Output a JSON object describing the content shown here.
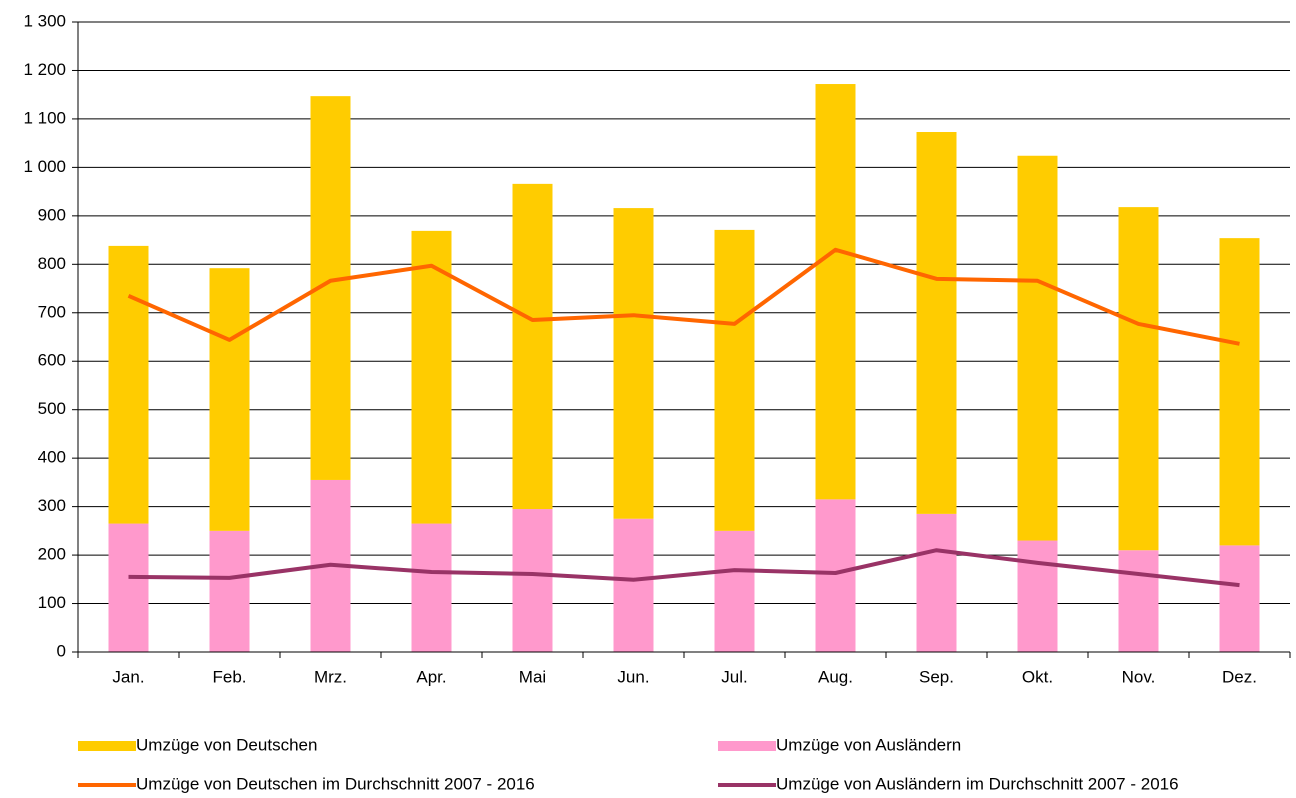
{
  "chart_data": {
    "type": "bar",
    "stacked": true,
    "categories": [
      "Jan.",
      "Feb.",
      "Mrz.",
      "Apr.",
      "Mai",
      "Jun.",
      "Jul.",
      "Aug.",
      "Sep.",
      "Okt.",
      "Nov.",
      "Dez."
    ],
    "series": [
      {
        "name": "Umzüge von Ausländern",
        "type": "bar",
        "color": "#ff99cc",
        "values": [
          265,
          250,
          355,
          265,
          295,
          275,
          250,
          315,
          285,
          230,
          210,
          220
        ]
      },
      {
        "name": "Umzüge von Deutschen",
        "type": "bar",
        "color": "#ffcc00",
        "values": [
          573,
          542,
          792,
          604,
          671,
          641,
          621,
          857,
          788,
          794,
          708,
          634
        ]
      },
      {
        "name": "Umzüge von Deutschen im Durchschnitt 2007 - 2016",
        "type": "line",
        "color": "#ff6600",
        "values": [
          735,
          644,
          766,
          797,
          685,
          695,
          677,
          830,
          770,
          766,
          677,
          636
        ]
      },
      {
        "name": "Umzüge von Ausländern im Durchschnitt 2007 - 2016",
        "type": "line",
        "color": "#993366",
        "values": [
          155,
          153,
          180,
          165,
          161,
          149,
          169,
          163,
          210,
          184,
          161,
          138
        ]
      }
    ],
    "ylim": [
      0,
      1300
    ],
    "yticks": [
      0,
      100,
      200,
      300,
      400,
      500,
      600,
      700,
      800,
      900,
      {
        "value": 1000,
        "label": "1 000"
      },
      {
        "value": 1100,
        "label": "1 100"
      },
      {
        "value": 1200,
        "label": "1 200"
      },
      {
        "value": 1300,
        "label": "1 300"
      }
    ],
    "grid": true
  }
}
